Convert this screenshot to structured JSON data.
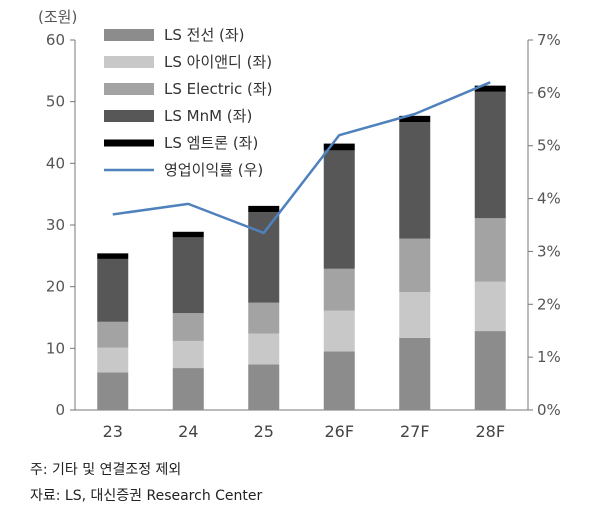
{
  "chart_data": {
    "type": "bar",
    "stacked": true,
    "unit_left": "(조원)",
    "categories": [
      "23",
      "24",
      "25",
      "26F",
      "27F",
      "28F"
    ],
    "series": [
      {
        "name": "LS 전선 (좌)",
        "color": "#8c8c8c",
        "values": [
          6.1,
          6.8,
          7.4,
          9.5,
          11.7,
          12.8
        ]
      },
      {
        "name": "LS 아이앤디 (좌)",
        "color": "#c8c8c8",
        "values": [
          4.0,
          4.4,
          5.0,
          6.6,
          7.4,
          8.0
        ]
      },
      {
        "name": "LS Electric (좌)",
        "color": "#a3a3a3",
        "values": [
          4.2,
          4.5,
          5.0,
          6.8,
          8.7,
          10.3
        ]
      },
      {
        "name": "LS MnM (좌)",
        "color": "#575757",
        "values": [
          10.2,
          12.3,
          14.7,
          19.2,
          18.9,
          20.5
        ]
      },
      {
        "name": "LS 엠트론 (좌)",
        "color": "#000000",
        "values": [
          0.9,
          0.9,
          1.0,
          1.1,
          1.0,
          1.0
        ]
      }
    ],
    "line_series": {
      "name": "영업이익률 (우)",
      "color": "#4f81bd",
      "values": [
        3.7,
        3.9,
        3.35,
        5.2,
        5.6,
        6.2
      ]
    },
    "ylim_left": [
      0,
      60
    ],
    "yticks_left": [
      "0",
      "10",
      "20",
      "30",
      "40",
      "50",
      "60"
    ],
    "ylim_right": [
      0,
      7
    ],
    "yticks_right": [
      "0%",
      "1%",
      "2%",
      "3%",
      "4%",
      "5%",
      "6%",
      "7%"
    ],
    "legend_position": "top-left"
  },
  "notes": {
    "note1": "주: 기타 및 연결조정 제외",
    "source": "자료: LS, 대신증권 Research Center"
  }
}
